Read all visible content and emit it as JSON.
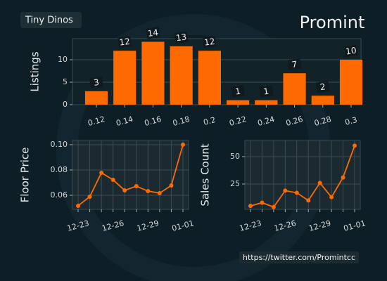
{
  "header": {
    "title": "Tiny Dinos",
    "logo": "Promint"
  },
  "footer": {
    "link": "https://twitter.com/Promintcc"
  },
  "chart_data": [
    {
      "type": "bar",
      "y_label": "Listings",
      "categories": [
        "0.12",
        "0.14",
        "0.16",
        "0.18",
        "0.2",
        "0.22",
        "0.24",
        "0.26",
        "0.28",
        "0.3"
      ],
      "values": [
        3,
        12,
        14,
        13,
        12,
        1,
        1,
        7,
        2,
        10
      ],
      "color": "#ff6a00",
      "ylim": [
        0,
        14.7
      ],
      "yticks": [
        0,
        5,
        10
      ],
      "grid": true
    },
    {
      "type": "line",
      "y_label": "Floor Price",
      "categories": [
        "12-23",
        null,
        null,
        "12-26",
        null,
        null,
        "12-29",
        null,
        null,
        "01-01"
      ],
      "values": [
        0.0517,
        0.0589,
        0.0778,
        0.0722,
        0.0639,
        0.0672,
        0.0633,
        0.0617,
        0.0678,
        0.1
      ],
      "color": "#ff6a00",
      "ylim": [
        0.0489,
        0.1033
      ],
      "yticks": [
        {
          "value": 0.06,
          "label": "0.06"
        },
        {
          "value": 0.08,
          "label": "0.08"
        },
        {
          "value": 0.1,
          "label": "0.10"
        }
      ],
      "grid": true
    },
    {
      "type": "line",
      "y_label": "Sales Count",
      "categories": [
        "12-23",
        null,
        null,
        "12-26",
        null,
        null,
        "12-29",
        null,
        null,
        "01-01"
      ],
      "values": [
        5,
        8,
        4,
        19,
        17,
        10,
        26,
        13,
        31,
        60
      ],
      "color": "#ff6a00",
      "ylim": [
        1.9,
        64.7
      ],
      "yticks": [
        25,
        50
      ],
      "grid": true
    }
  ]
}
